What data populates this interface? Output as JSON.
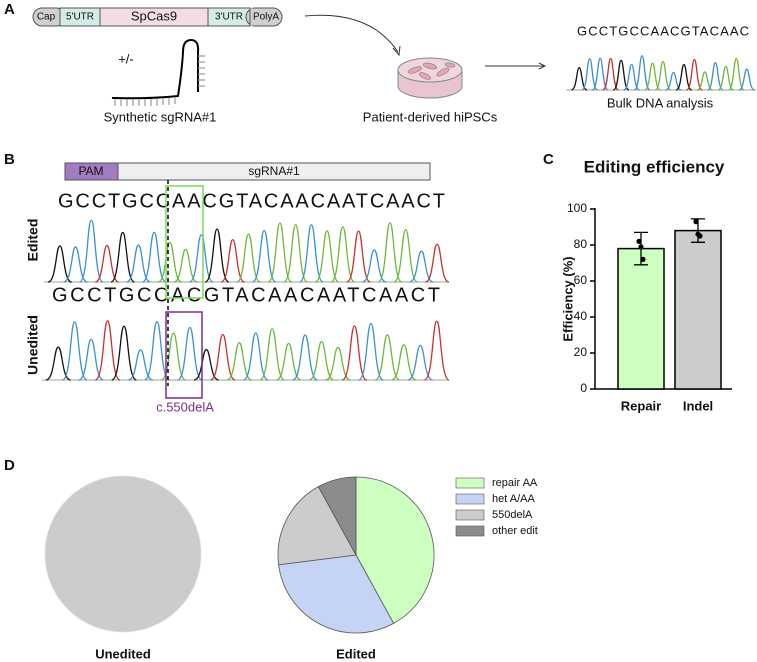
{
  "panel_labels": [
    "A",
    "B",
    "C",
    "D"
  ],
  "panel_a": {
    "construct": [
      "Cap",
      "5'UTR",
      "SpCas9",
      "3'UTR",
      "PolyA"
    ],
    "plus_minus": "+/-",
    "sgrna_label": "Synthetic sgRNA#1",
    "cells_label": "Patient-derived hiPSCs",
    "sequence": "GCCTGCCAACGTACAAC",
    "analysis_label": "Bulk DNA analysis"
  },
  "panel_b": {
    "pam": "PAM",
    "guide": "sgRNA#1",
    "edited_label": "Edited",
    "edited_sequence": "GCCTGCCAACGTACAACAATCAACT",
    "unedited_label": "Unedited",
    "unedited_sequence": "GCCTGCCACGTACAACAATCAACT",
    "mutation": "c.550delA"
  },
  "chart_data": [
    {
      "type": "bar",
      "title": "Editing efficiency",
      "y_label": "Efficiency (%)",
      "categories": [
        "Repair",
        "Indel"
      ],
      "values": [
        78,
        88
      ],
      "errors": [
        9,
        6.5
      ],
      "points": [
        [
          82,
          79,
          72
        ],
        [
          93,
          86,
          85
        ]
      ],
      "colors": [
        "#ccffc0",
        "#cccccc"
      ],
      "ylim": [
        0,
        100
      ],
      "yticks": [
        0,
        20,
        40,
        60,
        80,
        100
      ]
    },
    {
      "type": "pie",
      "title": "Unedited",
      "values": [
        100
      ],
      "colors": [
        "#cccccc"
      ]
    },
    {
      "type": "pie",
      "title": "Edited",
      "categories": [
        "repair AA",
        "het A/AA",
        "550delA",
        "other edit"
      ],
      "values": [
        42,
        31,
        19,
        8
      ],
      "colors": [
        "#ccffc0",
        "#c5d4f5",
        "#cccccc",
        "#8c8c8c"
      ]
    }
  ]
}
